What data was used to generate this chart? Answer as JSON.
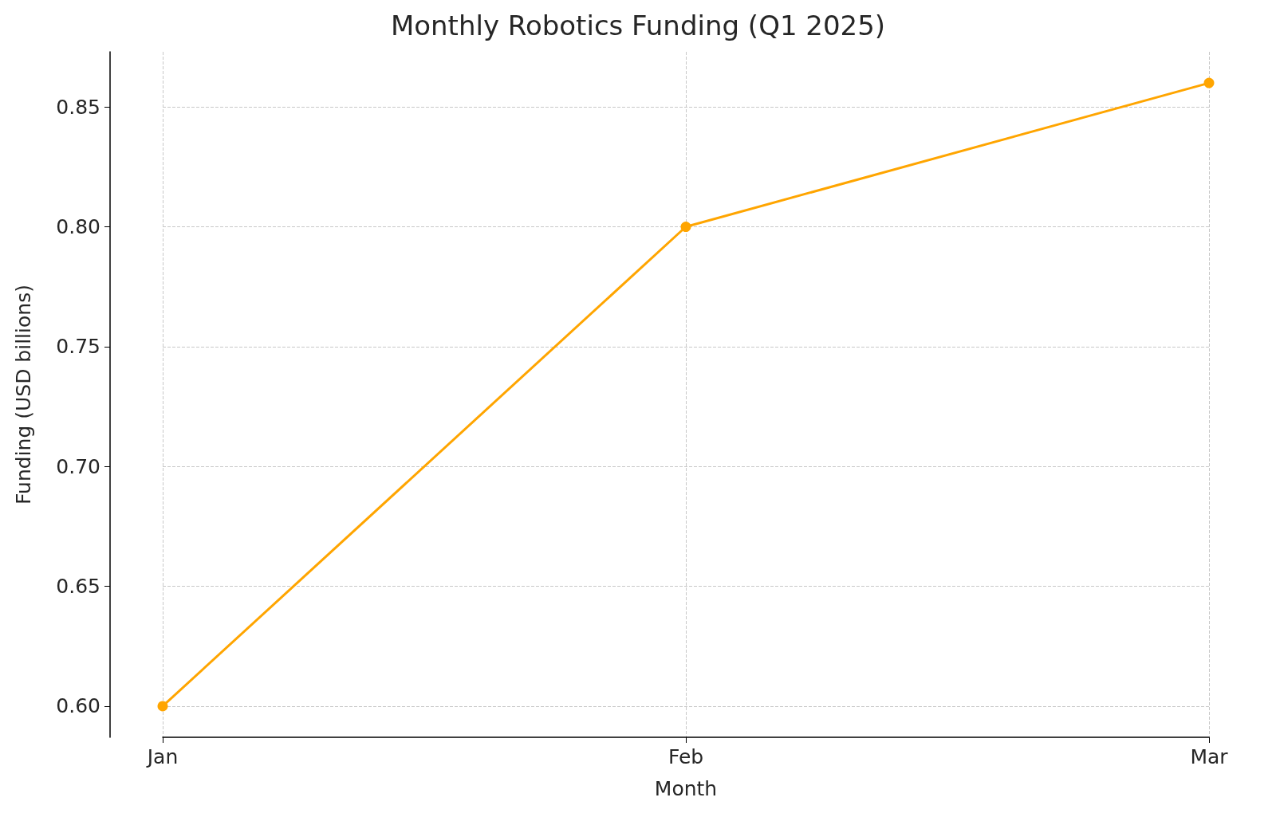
{
  "chart_data": {
    "type": "line",
    "title": "Monthly Robotics Funding (Q1 2025)",
    "xlabel": "Month",
    "ylabel": "Funding (USD billions)",
    "categories": [
      "Jan",
      "Feb",
      "Mar"
    ],
    "series": [
      {
        "color": "#ffa500",
        "values": [
          0.6,
          0.8,
          0.86
        ]
      }
    ],
    "ylim": [
      0.587,
      0.873
    ],
    "yticks": [
      {
        "value": 0.6,
        "label": "0.60"
      },
      {
        "value": 0.65,
        "label": "0.65"
      },
      {
        "value": 0.7,
        "label": "0.70"
      },
      {
        "value": 0.75,
        "label": "0.75"
      },
      {
        "value": 0.8,
        "label": "0.80"
      },
      {
        "value": 0.85,
        "label": "0.85"
      }
    ],
    "grid": true,
    "marker": "circle",
    "line_style": "solid"
  }
}
